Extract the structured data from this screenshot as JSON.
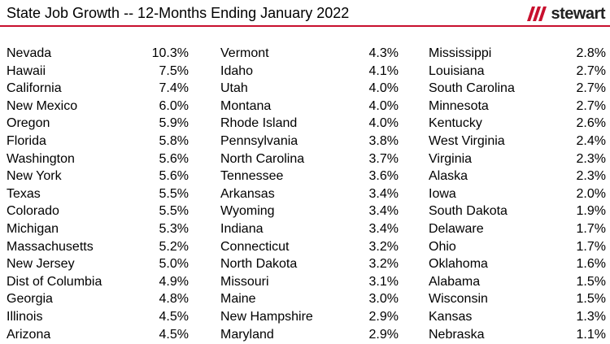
{
  "header": {
    "title": "State Job Growth -- 12-Months Ending January 2022",
    "logo_text": "stewart",
    "accent_color": "#c8102e"
  },
  "chart_data": {
    "type": "table",
    "title": "State Job Growth -- 12-Months Ending January 2022",
    "columns": [
      [
        {
          "state": "Nevada",
          "value": "10.3%"
        },
        {
          "state": "Hawaii",
          "value": "7.5%"
        },
        {
          "state": "California",
          "value": "7.4%"
        },
        {
          "state": "New Mexico",
          "value": "6.0%"
        },
        {
          "state": "Oregon",
          "value": "5.9%"
        },
        {
          "state": "Florida",
          "value": "5.8%"
        },
        {
          "state": "Washington",
          "value": "5.6%"
        },
        {
          "state": "New York",
          "value": "5.6%"
        },
        {
          "state": "Texas",
          "value": "5.5%"
        },
        {
          "state": "Colorado",
          "value": "5.5%"
        },
        {
          "state": "Michigan",
          "value": "5.3%"
        },
        {
          "state": "Massachusetts",
          "value": "5.2%"
        },
        {
          "state": "New Jersey",
          "value": "5.0%"
        },
        {
          "state": "Dist of Columbia",
          "value": "4.9%"
        },
        {
          "state": "Georgia",
          "value": "4.8%"
        },
        {
          "state": "Illinois",
          "value": "4.5%"
        },
        {
          "state": "Arizona",
          "value": "4.5%"
        }
      ],
      [
        {
          "state": "Vermont",
          "value": "4.3%"
        },
        {
          "state": "Idaho",
          "value": "4.1%"
        },
        {
          "state": "Utah",
          "value": "4.0%"
        },
        {
          "state": "Montana",
          "value": "4.0%"
        },
        {
          "state": "Rhode Island",
          "value": "4.0%"
        },
        {
          "state": "Pennsylvania",
          "value": "3.8%"
        },
        {
          "state": "North Carolina",
          "value": "3.7%"
        },
        {
          "state": "Tennessee",
          "value": "3.6%"
        },
        {
          "state": "Arkansas",
          "value": "3.4%"
        },
        {
          "state": "Wyoming",
          "value": "3.4%"
        },
        {
          "state": "Indiana",
          "value": "3.4%"
        },
        {
          "state": "Connecticut",
          "value": "3.2%"
        },
        {
          "state": "North Dakota",
          "value": "3.2%"
        },
        {
          "state": "Missouri",
          "value": "3.1%"
        },
        {
          "state": "Maine",
          "value": "3.0%"
        },
        {
          "state": "New Hampshire",
          "value": "2.9%"
        },
        {
          "state": "Maryland",
          "value": "2.9%"
        }
      ],
      [
        {
          "state": "Mississippi",
          "value": "2.8%"
        },
        {
          "state": "Louisiana",
          "value": "2.7%"
        },
        {
          "state": "South Carolina",
          "value": "2.7%"
        },
        {
          "state": "Minnesota",
          "value": "2.7%"
        },
        {
          "state": "Kentucky",
          "value": "2.6%"
        },
        {
          "state": "West Virginia",
          "value": "2.4%"
        },
        {
          "state": "Virginia",
          "value": "2.3%"
        },
        {
          "state": "Alaska",
          "value": "2.3%"
        },
        {
          "state": "Iowa",
          "value": "2.0%"
        },
        {
          "state": "South Dakota",
          "value": "1.9%"
        },
        {
          "state": "Delaware",
          "value": "1.7%"
        },
        {
          "state": "Ohio",
          "value": "1.7%"
        },
        {
          "state": "Oklahoma",
          "value": "1.6%"
        },
        {
          "state": "Alabama",
          "value": "1.5%"
        },
        {
          "state": "Wisconsin",
          "value": "1.5%"
        },
        {
          "state": "Kansas",
          "value": "1.3%"
        },
        {
          "state": "Nebraska",
          "value": "1.1%"
        }
      ]
    ]
  }
}
